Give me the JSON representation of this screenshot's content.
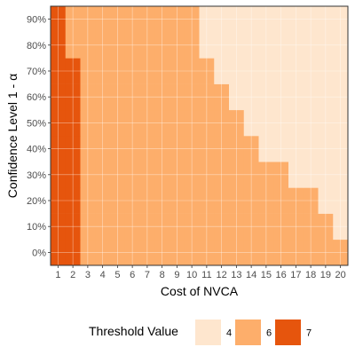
{
  "chart_data": {
    "type": "heatmap",
    "x": [
      1,
      2,
      3,
      4,
      5,
      6,
      7,
      8,
      9,
      10,
      11,
      12,
      13,
      14,
      15,
      16,
      17,
      18,
      19,
      20
    ],
    "y": [
      "0%",
      "10%",
      "20%",
      "30%",
      "40%",
      "50%",
      "60%",
      "70%",
      "80%",
      "90%"
    ],
    "xlabel": "Cost of NVCA",
    "ylabel_prefix": "Confidence Level 1 - ",
    "ylabel_symbol": "α",
    "legend": {
      "title": "Threshold Value",
      "placement": "bottom",
      "entries": [
        {
          "label": "4",
          "color": "#fee6ce"
        },
        {
          "label": "6",
          "color": "#fdae6b"
        },
        {
          "label": "7",
          "color": "#e6550d"
        }
      ]
    },
    "values": [
      [
        7,
        7,
        6,
        6,
        6,
        6,
        6,
        6,
        6,
        6,
        6,
        6,
        6,
        6,
        6,
        6,
        6,
        6,
        6,
        6
      ],
      [
        7,
        7,
        6,
        6,
        6,
        6,
        6,
        6,
        6,
        6,
        6,
        6,
        6,
        6,
        6,
        6,
        6,
        6,
        6,
        4
      ],
      [
        7,
        7,
        6,
        6,
        6,
        6,
        6,
        6,
        6,
        6,
        6,
        6,
        6,
        6,
        6,
        6,
        6,
        6,
        4,
        4
      ],
      [
        7,
        7,
        6,
        6,
        6,
        6,
        6,
        6,
        6,
        6,
        6,
        6,
        6,
        6,
        6,
        6,
        4,
        4,
        4,
        4
      ],
      [
        7,
        7,
        6,
        6,
        6,
        6,
        6,
        6,
        6,
        6,
        6,
        6,
        6,
        6,
        4,
        4,
        4,
        4,
        4,
        4
      ],
      [
        7,
        7,
        6,
        6,
        6,
        6,
        6,
        6,
        6,
        6,
        6,
        6,
        6,
        4,
        4,
        4,
        4,
        4,
        4,
        4
      ],
      [
        7,
        7,
        6,
        6,
        6,
        6,
        6,
        6,
        6,
        6,
        6,
        6,
        4,
        4,
        4,
        4,
        4,
        4,
        4,
        4
      ],
      [
        7,
        7,
        6,
        6,
        6,
        6,
        6,
        6,
        6,
        6,
        6,
        4,
        4,
        4,
        4,
        4,
        4,
        4,
        4,
        4
      ],
      [
        7,
        6,
        6,
        6,
        6,
        6,
        6,
        6,
        6,
        6,
        4,
        4,
        4,
        4,
        4,
        4,
        4,
        4,
        4,
        4
      ],
      [
        7,
        6,
        6,
        6,
        6,
        6,
        6,
        6,
        6,
        6,
        4,
        4,
        4,
        4,
        4,
        4,
        4,
        4,
        4,
        4
      ]
    ]
  }
}
